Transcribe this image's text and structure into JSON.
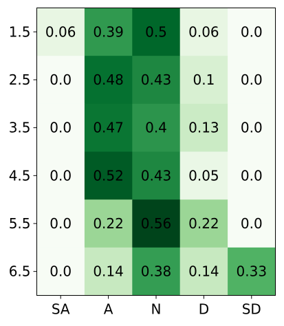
{
  "chart_data": {
    "type": "heatmap",
    "title": "",
    "xlabel": "",
    "ylabel": "",
    "x_categories": [
      "SA",
      "A",
      "N",
      "D",
      "SD"
    ],
    "y_categories": [
      "1.5",
      "2.5",
      "3.5",
      "4.5",
      "5.5",
      "6.5"
    ],
    "values": [
      [
        0.06,
        0.39,
        0.5,
        0.06,
        0.0
      ],
      [
        0.0,
        0.48,
        0.43,
        0.1,
        0.0
      ],
      [
        0.0,
        0.47,
        0.4,
        0.13,
        0.0
      ],
      [
        0.0,
        0.52,
        0.43,
        0.05,
        0.0
      ],
      [
        0.0,
        0.22,
        0.56,
        0.22,
        0.0
      ],
      [
        0.0,
        0.14,
        0.38,
        0.14,
        0.33
      ]
    ],
    "value_labels": [
      [
        "0.06",
        "0.39",
        "0.5",
        "0.06",
        "0.0"
      ],
      [
        "0.0",
        "0.48",
        "0.43",
        "0.1",
        "0.0"
      ],
      [
        "0.0",
        "0.47",
        "0.4",
        "0.13",
        "0.0"
      ],
      [
        "0.0",
        "0.52",
        "0.43",
        "0.05",
        "0.0"
      ],
      [
        "0.0",
        "0.22",
        "0.56",
        "0.22",
        "0.0"
      ],
      [
        "0.0",
        "0.14",
        "0.38",
        "0.14",
        "0.33"
      ]
    ],
    "colormap": "Greens",
    "vmin": 0.0,
    "vmax": 0.56,
    "colorbar": false,
    "grid": false
  }
}
